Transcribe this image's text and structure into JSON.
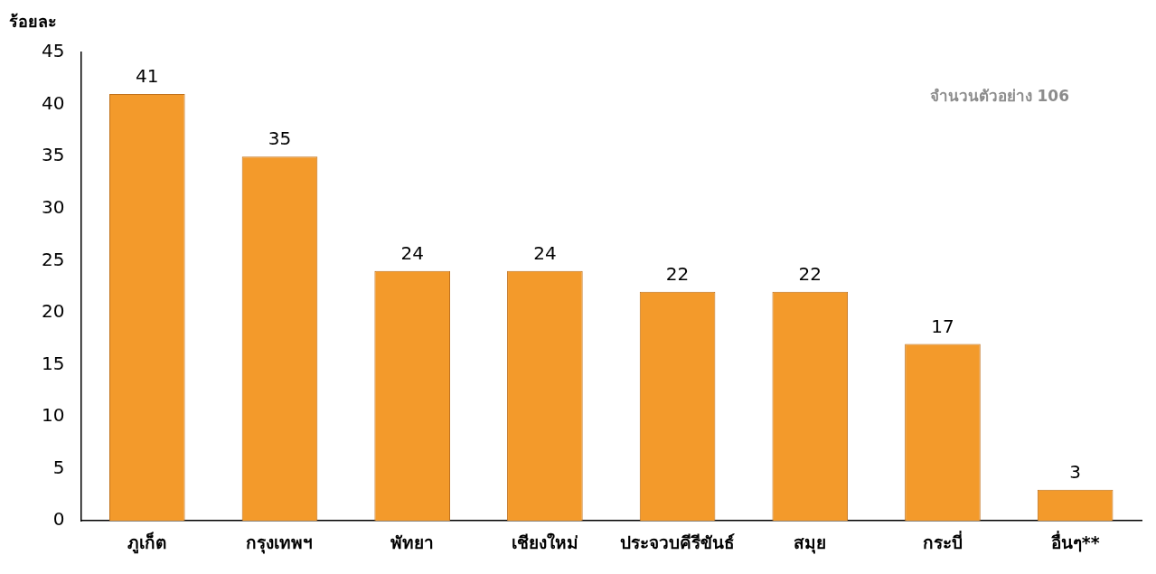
{
  "chart_data": {
    "type": "bar",
    "ylabel": "ร้อยละ",
    "categories": [
      "ภูเก็ต",
      "กรุงเทพฯ",
      "พัทยา",
      "เชียงใหม่",
      "ประจวบคีรีขันธ์",
      "สมุย",
      "กระบี่",
      "อื่นๆ**"
    ],
    "values": [
      41,
      35,
      24,
      24,
      22,
      22,
      17,
      3
    ],
    "color": "#f39a2b",
    "ylim": [
      0,
      45
    ],
    "yticks": [
      0,
      5,
      10,
      15,
      20,
      25,
      30,
      35,
      40,
      45
    ],
    "grid": false,
    "data_labels": true,
    "annotations": [
      "จำนวนตัวอย่าง 106"
    ]
  }
}
